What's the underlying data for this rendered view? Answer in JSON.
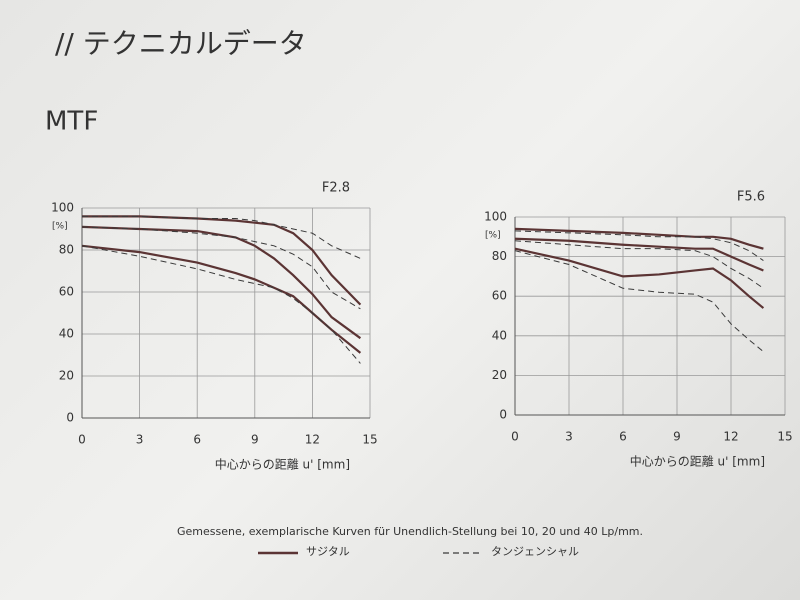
{
  "slide_title": "// テクニカルデータ",
  "slide_subtitle": "MTF",
  "chart_data": [
    {
      "type": "line",
      "title": "F2.8",
      "xlabel": "中心からの距離 u' [mm]",
      "ylabel": "[%]",
      "xlim": [
        0,
        15
      ],
      "ylim": [
        0,
        100
      ],
      "xticks": [
        0,
        3,
        6,
        9,
        12,
        15
      ],
      "yticks": [
        0,
        20,
        40,
        60,
        80,
        100
      ],
      "grid": true,
      "x": [
        0,
        3,
        6,
        8,
        9,
        10,
        11,
        12,
        13,
        14.5
      ],
      "series": [
        {
          "style": "solid",
          "color": "#5b3434",
          "values": [
            96,
            96,
            95,
            94,
            93,
            92,
            88,
            80,
            68,
            54
          ]
        },
        {
          "style": "dashed",
          "color": "#3a3a3a",
          "values": [
            96,
            96,
            95,
            95,
            94,
            92,
            90,
            88,
            82,
            76
          ]
        },
        {
          "style": "solid",
          "color": "#5b3434",
          "values": [
            91,
            90,
            89,
            86,
            82,
            76,
            68,
            59,
            48,
            38
          ]
        },
        {
          "style": "dashed",
          "color": "#3a3a3a",
          "values": [
            91,
            90,
            88,
            86,
            84,
            82,
            78,
            72,
            60,
            52
          ]
        },
        {
          "style": "solid",
          "color": "#5b3434",
          "values": [
            82,
            79,
            74,
            69,
            66,
            62,
            58,
            50,
            42,
            31
          ]
        },
        {
          "style": "dashed",
          "color": "#3a3a3a",
          "values": [
            82,
            77,
            71,
            66,
            64,
            62,
            57,
            50,
            42,
            26
          ]
        }
      ]
    },
    {
      "type": "line",
      "title": "F5.6",
      "xlabel": "中心からの距離 u' [mm]",
      "ylabel": "[%]",
      "xlim": [
        0,
        15
      ],
      "ylim": [
        0,
        100
      ],
      "xticks": [
        0,
        3,
        6,
        9,
        12,
        15
      ],
      "yticks": [
        0,
        20,
        40,
        60,
        80,
        100
      ],
      "grid": true,
      "x": [
        0,
        3,
        6,
        8,
        10,
        11,
        12,
        13,
        13.8
      ],
      "series": [
        {
          "style": "solid",
          "color": "#5b3434",
          "values": [
            94,
            93,
            92,
            91,
            90,
            90,
            89,
            86,
            84
          ]
        },
        {
          "style": "dashed",
          "color": "#3a3a3a",
          "values": [
            93,
            92,
            91,
            90,
            90,
            89,
            87,
            83,
            78
          ]
        },
        {
          "style": "solid",
          "color": "#5b3434",
          "values": [
            89,
            88,
            86,
            85,
            84,
            84,
            80,
            76,
            73
          ]
        },
        {
          "style": "dashed",
          "color": "#3a3a3a",
          "values": [
            88,
            86,
            84,
            84,
            83,
            80,
            74,
            69,
            64
          ]
        },
        {
          "style": "solid",
          "color": "#5b3434",
          "values": [
            84,
            78,
            70,
            71,
            73,
            74,
            68,
            60,
            54
          ]
        },
        {
          "style": "dashed",
          "color": "#3a3a3a",
          "values": [
            83,
            76,
            64,
            62,
            61,
            57,
            46,
            38,
            32
          ]
        }
      ]
    }
  ],
  "footnote": "Gemessene, exemplarische Kurven für Unendlich-Stellung bei 10, 20 und 40 Lp/mm.",
  "legend": [
    {
      "name": "サジタル",
      "style": "solid",
      "color": "#5b3434"
    },
    {
      "name": "タンジェンシャル",
      "style": "dashed",
      "color": "#3a3a3a"
    }
  ]
}
